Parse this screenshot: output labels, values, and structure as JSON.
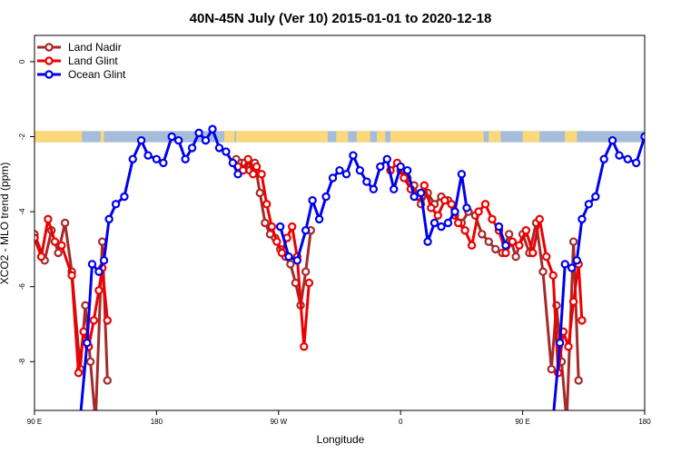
{
  "chart_data": {
    "type": "line",
    "title": "40N-45N July (Ver 10)   2015-01-01 to 2020-12-18",
    "xlabel": "Longitude",
    "ylabel": "XCO2 - MLO trend (ppm)",
    "xlim": [
      90,
      450
    ],
    "ylim": [
      -9.3,
      0.7
    ],
    "x_ticks": [
      {
        "value": 90,
        "label": "90 E"
      },
      {
        "value": 162,
        "label": "180"
      },
      {
        "value": 234,
        "label": "90 W"
      },
      {
        "value": 306,
        "label": "0"
      },
      {
        "value": 378,
        "label": "90 E"
      },
      {
        "value": 450,
        "label": "180"
      }
    ],
    "y_ticks": [
      0,
      -2,
      -4,
      -6,
      -8
    ],
    "land_ocean_strip": {
      "y_top": -1.85,
      "y_bottom": -2.15,
      "ocean_color": "#a5bddb",
      "land_color": "#fbd87a",
      "land_segments": [
        [
          90,
          118
        ],
        [
          129,
          131
        ],
        [
          202,
          208
        ],
        [
          209,
          263
        ],
        [
          268,
          275
        ],
        [
          280,
          288
        ],
        [
          292,
          297
        ],
        [
          300,
          355
        ],
        [
          358,
          365
        ],
        [
          378,
          388
        ],
        [
          403,
          410
        ]
      ]
    },
    "legend": {
      "position": "top-left",
      "entries": [
        {
          "name": "Land Nadir",
          "color": "#a52a2a"
        },
        {
          "name": "Land Glint",
          "color": "#ee0000"
        },
        {
          "name": "Ocean Glint",
          "color": "#0000ee"
        }
      ]
    },
    "series": [
      {
        "name": "Land Nadir",
        "color": "#a52a2a",
        "segments": [
          [
            [
              90,
              -4.6
            ],
            [
              96,
              -5.3
            ],
            [
              100,
              -4.5
            ],
            [
              104,
              -5.1
            ],
            [
              108,
              -4.3
            ],
            [
              112,
              -5.6
            ],
            [
              117,
              -8.2
            ],
            [
              120,
              -6.5
            ],
            [
              123,
              -8.0
            ],
            [
              126,
              -9.6
            ],
            [
              130,
              -4.8
            ],
            [
              133,
              -8.5
            ]
          ],
          [
            [
              209,
              -2.6
            ],
            [
              212,
              -2.7
            ],
            [
              214,
              -2.7
            ],
            [
              217,
              -2.9
            ],
            [
              220,
              -2.7
            ],
            [
              223,
              -3.5
            ],
            [
              226,
              -4.3
            ],
            [
              229,
              -4.6
            ],
            [
              232,
              -4.7
            ],
            [
              235,
              -5.0
            ],
            [
              238,
              -5.2
            ],
            [
              241,
              -5.4
            ],
            [
              244,
              -5.9
            ],
            [
              247,
              -6.5
            ],
            [
              250,
              -5.6
            ],
            [
              253,
              -4.5
            ]
          ],
          [
            [
              306,
              -2.9
            ],
            [
              310,
              -3.1
            ],
            [
              314,
              -3.3
            ],
            [
              318,
              -3.8
            ],
            [
              322,
              -3.5
            ],
            [
              326,
              -3.8
            ],
            [
              330,
              -3.6
            ],
            [
              334,
              -3.7
            ],
            [
              338,
              -4.1
            ],
            [
              342,
              -4.3
            ],
            [
              346,
              -4.0
            ],
            [
              350,
              -4.1
            ],
            [
              354,
              -4.6
            ],
            [
              358,
              -4.8
            ],
            [
              362,
              -5.0
            ],
            [
              366,
              -5.1
            ],
            [
              370,
              -4.6
            ],
            [
              374,
              -5.2
            ],
            [
              378,
              -4.6
            ],
            [
              382,
              -5.1
            ],
            [
              386,
              -4.3
            ],
            [
              390,
              -5.6
            ],
            [
              395,
              -8.2
            ],
            [
              398,
              -6.5
            ],
            [
              401,
              -8.0
            ],
            [
              404,
              -9.6
            ],
            [
              408,
              -4.8
            ],
            [
              411,
              -8.5
            ]
          ]
        ]
      },
      {
        "name": "Land Glint",
        "color": "#ee0000",
        "segments": [
          [
            [
              90,
              -4.7
            ],
            [
              94,
              -5.2
            ],
            [
              98,
              -4.2
            ],
            [
              102,
              -4.8
            ],
            [
              106,
              -4.9
            ],
            [
              112,
              -5.7
            ],
            [
              116,
              -8.3
            ],
            [
              119,
              -7.2
            ],
            [
              122,
              -7.6
            ],
            [
              125,
              -6.9
            ],
            [
              128,
              -6.1
            ],
            [
              130,
              -5.5
            ],
            [
              133,
              -6.9
            ]
          ],
          [
            [
              210,
              -2.8
            ],
            [
              213,
              -2.9
            ],
            [
              216,
              -2.6
            ],
            [
              219,
              -3.0
            ],
            [
              221,
              -2.8
            ],
            [
              224,
              -3.0
            ],
            [
              227,
              -3.8
            ],
            [
              230,
              -4.4
            ],
            [
              233,
              -4.8
            ],
            [
              236,
              -5.1
            ],
            [
              239,
              -4.7
            ],
            [
              242,
              -4.4
            ],
            [
              245,
              -5.2
            ],
            [
              249,
              -7.6
            ],
            [
              252,
              -5.9
            ]
          ],
          [
            [
              300,
              -2.9
            ],
            [
              304,
              -2.7
            ],
            [
              308,
              -3.1
            ],
            [
              312,
              -3.4
            ],
            [
              316,
              -3.6
            ],
            [
              320,
              -3.3
            ],
            [
              324,
              -3.9
            ],
            [
              328,
              -4.1
            ],
            [
              332,
              -3.7
            ],
            [
              336,
              -3.8
            ],
            [
              340,
              -4.3
            ],
            [
              344,
              -4.5
            ],
            [
              348,
              -4.9
            ],
            [
              352,
              -4.0
            ],
            [
              356,
              -3.8
            ],
            [
              360,
              -4.2
            ],
            [
              364,
              -4.5
            ],
            [
              368,
              -5.1
            ],
            [
              372,
              -4.8
            ],
            [
              376,
              -4.9
            ],
            [
              380,
              -4.5
            ],
            [
              384,
              -5.1
            ],
            [
              388,
              -4.2
            ],
            [
              392,
              -5.2
            ],
            [
              396,
              -5.7
            ],
            [
              399,
              -8.3
            ],
            [
              402,
              -7.2
            ],
            [
              405,
              -7.6
            ],
            [
              408,
              -6.4
            ],
            [
              411,
              -5.4
            ],
            [
              413,
              -6.9
            ]
          ]
        ]
      },
      {
        "name": "Ocean Glint",
        "color": "#0000ee",
        "segments": [
          [
            [
              117,
              -9.5
            ],
            [
              121,
              -7.5
            ],
            [
              124,
              -5.4
            ],
            [
              128,
              -5.6
            ],
            [
              131,
              -5.3
            ],
            [
              134,
              -4.2
            ],
            [
              138,
              -3.8
            ],
            [
              143,
              -3.6
            ],
            [
              148,
              -2.6
            ],
            [
              153,
              -2.1
            ],
            [
              157,
              -2.5
            ],
            [
              162,
              -2.6
            ],
            [
              166,
              -2.7
            ],
            [
              171,
              -2.0
            ],
            [
              175,
              -2.1
            ],
            [
              179,
              -2.6
            ],
            [
              183,
              -2.3
            ],
            [
              187,
              -1.9
            ],
            [
              191,
              -2.1
            ],
            [
              195,
              -1.8
            ],
            [
              199,
              -2.3
            ],
            [
              203,
              -2.4
            ],
            [
              207,
              -2.7
            ],
            [
              210,
              -3.0
            ]
          ],
          [
            [
              235,
              -4.4
            ],
            [
              240,
              -5.2
            ],
            [
              245,
              -5.3
            ],
            [
              250,
              -4.5
            ],
            [
              254,
              -3.7
            ],
            [
              258,
              -4.2
            ],
            [
              262,
              -3.6
            ],
            [
              266,
              -3.1
            ],
            [
              270,
              -2.9
            ],
            [
              274,
              -3.0
            ],
            [
              278,
              -2.5
            ],
            [
              282,
              -2.9
            ],
            [
              286,
              -3.2
            ],
            [
              290,
              -3.4
            ],
            [
              294,
              -2.8
            ],
            [
              298,
              -2.6
            ],
            [
              302,
              -3.4
            ],
            [
              306,
              -2.8
            ],
            [
              310,
              -2.9
            ],
            [
              314,
              -3.6
            ],
            [
              318,
              -3.5
            ],
            [
              322,
              -4.8
            ],
            [
              326,
              -4.3
            ],
            [
              330,
              -4.4
            ],
            [
              334,
              -4.3
            ],
            [
              338,
              -4.0
            ],
            [
              342,
              -3.0
            ],
            [
              345,
              -3.9
            ]
          ],
          [
            [
              364,
              -4.4
            ],
            [
              368,
              -4.9
            ]
          ],
          [
            [
              396,
              -9.5
            ],
            [
              400,
              -7.5
            ],
            [
              403,
              -5.4
            ],
            [
              407,
              -5.5
            ],
            [
              410,
              -5.3
            ],
            [
              413,
              -4.2
            ],
            [
              417,
              -3.8
            ],
            [
              421,
              -3.6
            ],
            [
              426,
              -2.6
            ],
            [
              431,
              -2.1
            ],
            [
              435,
              -2.5
            ],
            [
              440,
              -2.6
            ],
            [
              445,
              -2.7
            ],
            [
              450,
              -2.0
            ]
          ]
        ]
      }
    ]
  }
}
